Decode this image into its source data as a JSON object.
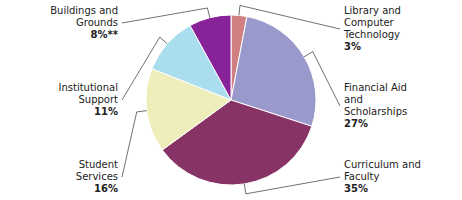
{
  "chart_data": {
    "type": "pie",
    "categories": [
      "Library and\nComputer\nTechnology",
      "Financial Aid\nand\nScholarships",
      "Curriculum and\nFaculty",
      "Student\nServices",
      "Institutional\nSupport",
      "Buildings and\nGrounds"
    ],
    "values": [
      3,
      27,
      35,
      16,
      11,
      8
    ],
    "value_labels": [
      "3%",
      "27%",
      "35%",
      "16%",
      "11%",
      "8%**"
    ],
    "colors": [
      "#d08080",
      "#9999cc",
      "#883366",
      "#eeeebb",
      "#aaddee",
      "#882299"
    ],
    "data_labels": true
  }
}
